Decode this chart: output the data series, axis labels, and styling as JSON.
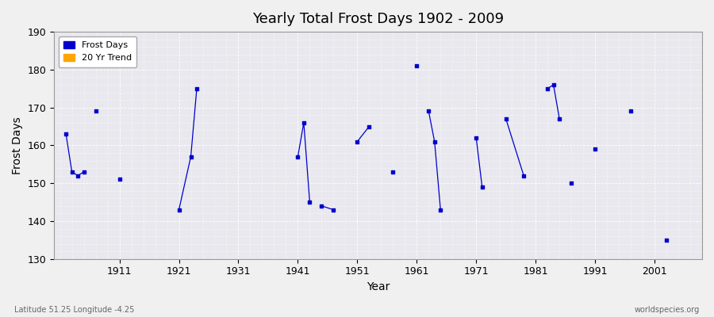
{
  "title": "Yearly Total Frost Days 1902 - 2009",
  "xlabel": "Year",
  "ylabel": "Frost Days",
  "lat_lon_label": "Latitude 51.25 Longitude -4.25",
  "watermark": "worldspecies.org",
  "ylim": [
    130,
    190
  ],
  "yticks": [
    130,
    140,
    150,
    160,
    170,
    180,
    190
  ],
  "xticks": [
    1911,
    1921,
    1931,
    1941,
    1951,
    1961,
    1971,
    1981,
    1991,
    2001
  ],
  "xlim": [
    1900,
    2009
  ],
  "line_color": "#0000cc",
  "scatter_color": "#0000cc",
  "trend_color": "orange",
  "fig_bg_color": "#f0f0f0",
  "plot_bg_color": "#e8e8ee",
  "grid_color": "#ffffff",
  "clusters": [
    [
      [
        1902,
        163
      ],
      [
        1903,
        153
      ],
      [
        1904,
        152
      ],
      [
        1905,
        153
      ]
    ],
    [
      [
        1907,
        169
      ]
    ],
    [
      [
        1911,
        151
      ]
    ],
    [
      [
        1921,
        143
      ],
      [
        1923,
        157
      ],
      [
        1924,
        175
      ]
    ],
    [
      [
        1941,
        157
      ],
      [
        1942,
        166
      ],
      [
        1943,
        145
      ]
    ],
    [
      [
        1945,
        144
      ],
      [
        1947,
        143
      ]
    ],
    [
      [
        1951,
        161
      ],
      [
        1953,
        165
      ]
    ],
    [
      [
        1957,
        153
      ]
    ],
    [
      [
        1961,
        181
      ]
    ],
    [
      [
        1963,
        169
      ],
      [
        1964,
        161
      ],
      [
        1965,
        143
      ]
    ],
    [
      [
        1971,
        162
      ],
      [
        1972,
        149
      ]
    ],
    [
      [
        1976,
        167
      ],
      [
        1979,
        152
      ]
    ],
    [
      [
        1983,
        175
      ],
      [
        1984,
        176
      ],
      [
        1985,
        167
      ]
    ],
    [
      [
        1987,
        150
      ]
    ],
    [
      [
        1991,
        159
      ]
    ],
    [
      [
        1997,
        169
      ]
    ],
    [
      [
        2003,
        135
      ]
    ]
  ]
}
